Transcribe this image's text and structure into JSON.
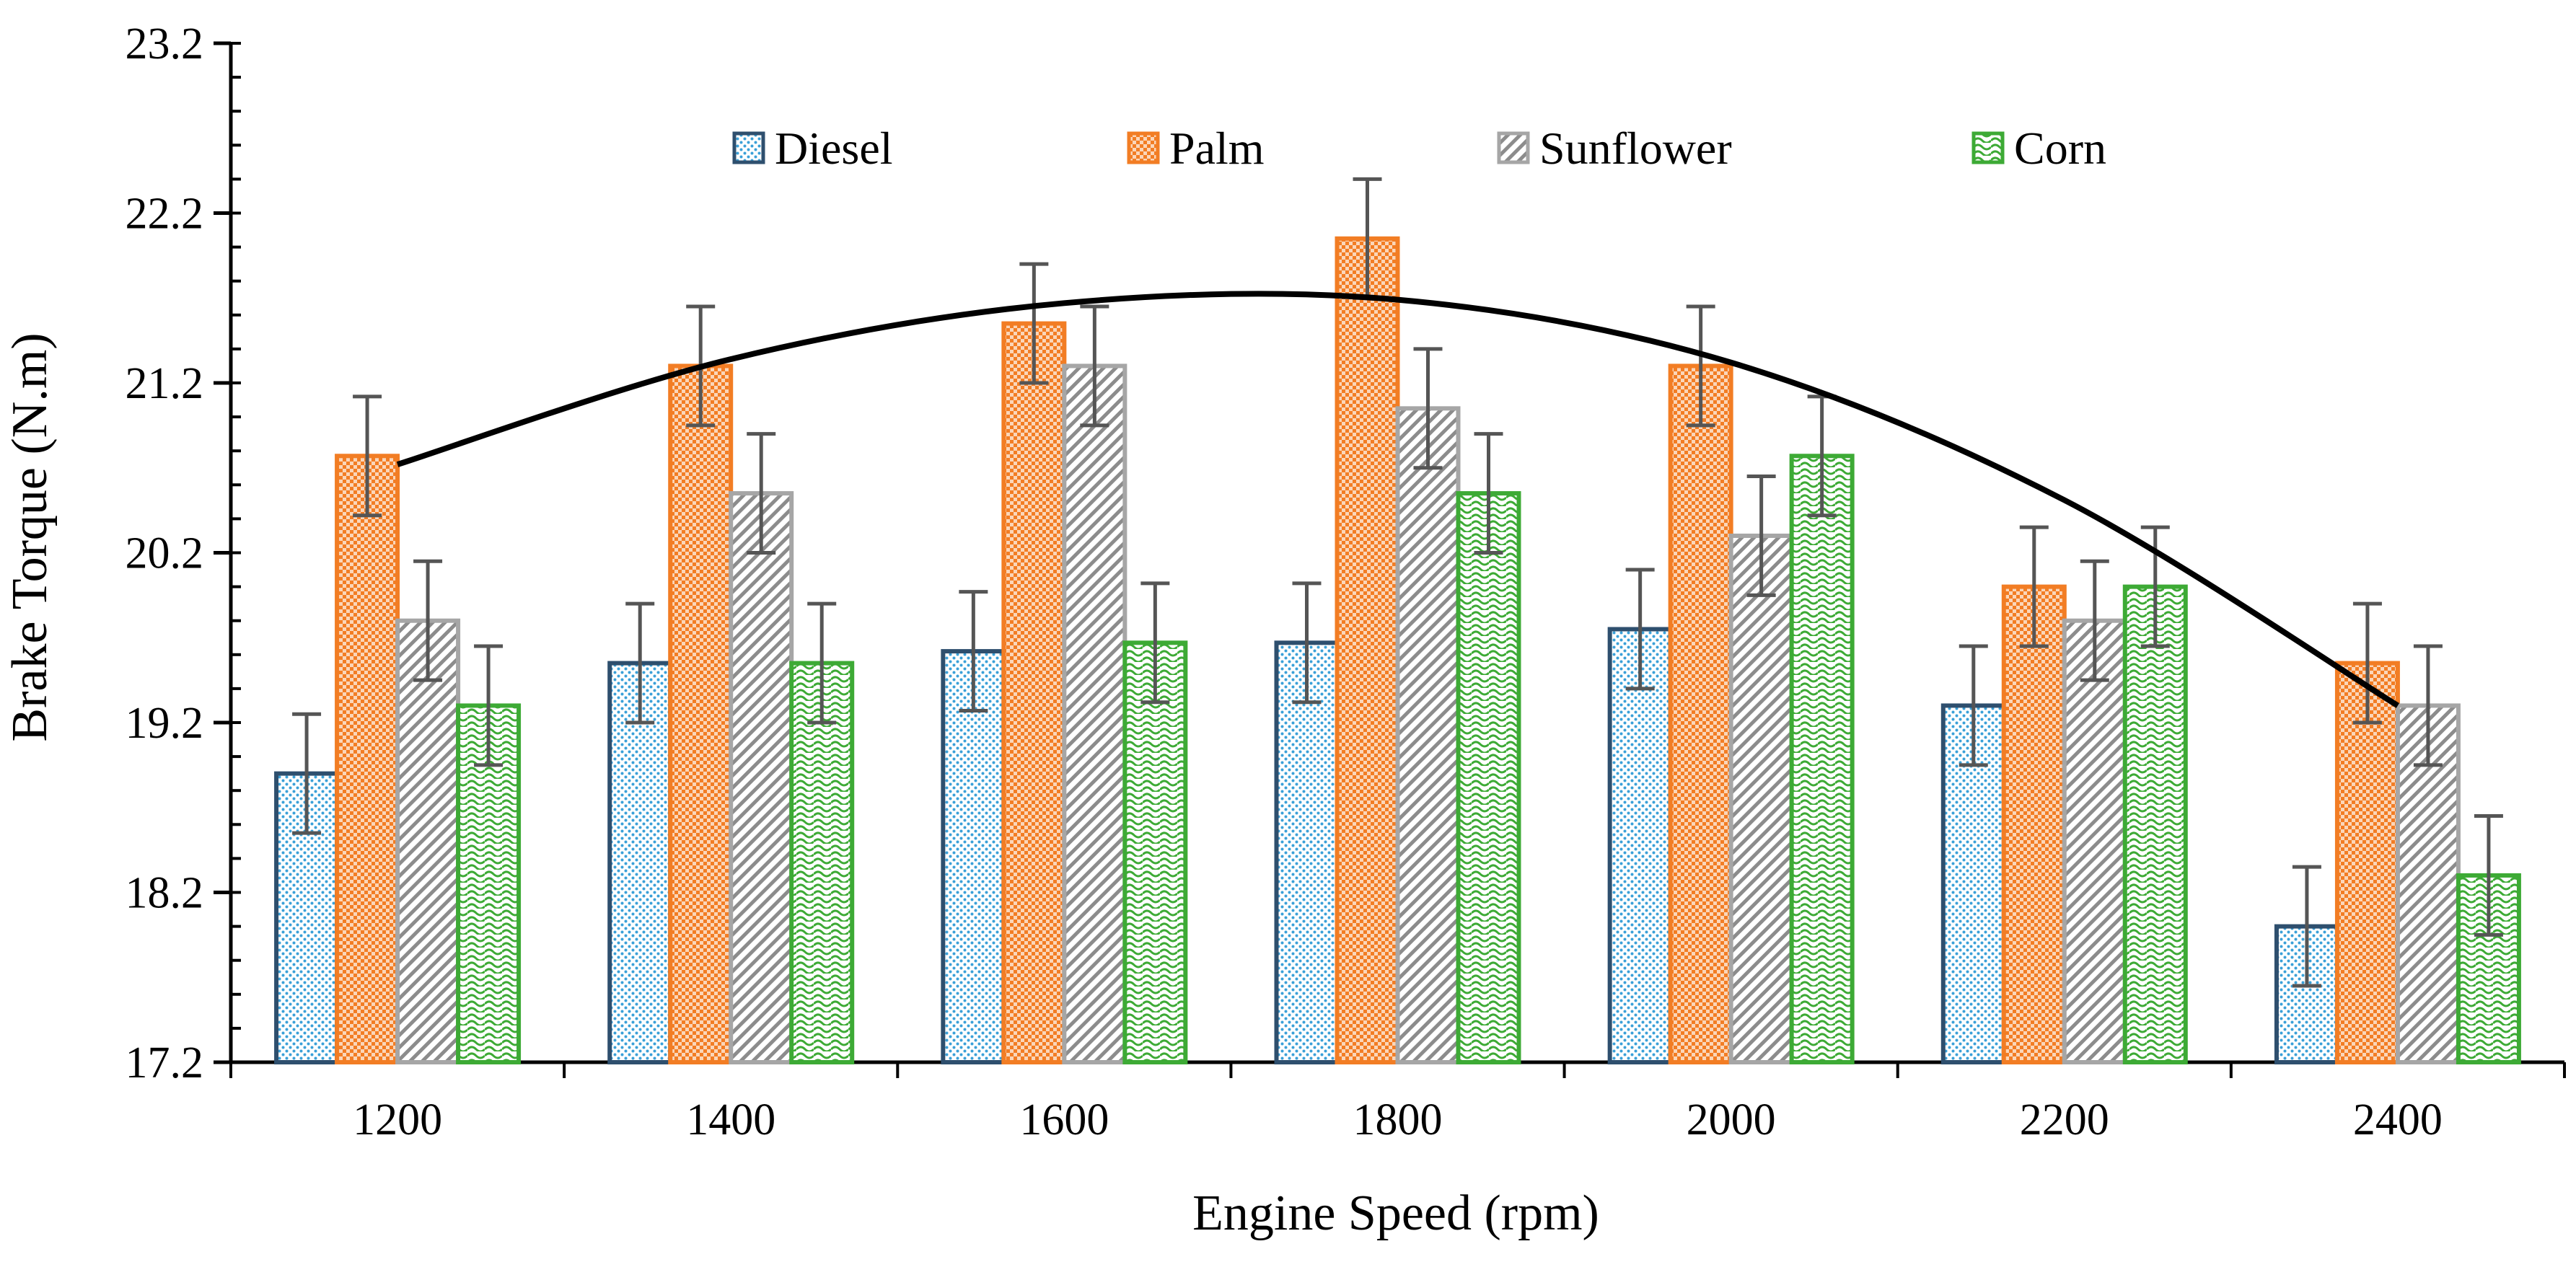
{
  "chart_data": {
    "type": "bar",
    "title": "",
    "xlabel": "Engine Speed (rpm)",
    "ylabel": "Brake Torque (N.m)",
    "ylim": [
      17.2,
      23.2
    ],
    "yticks": [
      "17.2",
      "18.2",
      "19.2",
      "20.2",
      "21.2",
      "22.2",
      "23.2"
    ],
    "categories": [
      "1200",
      "1400",
      "1600",
      "1800",
      "2000",
      "2200",
      "2400"
    ],
    "error_bar": 0.35,
    "legend_position": "top-center",
    "series": [
      {
        "name": "Diesel",
        "color": "#2e4f6e",
        "fill": "#3aa0d8",
        "pattern": "dots",
        "values": [
          18.9,
          19.55,
          19.62,
          19.67,
          19.75,
          19.3,
          18.0
        ]
      },
      {
        "name": "Palm",
        "color": "#f27d24",
        "fill": "#f27d24",
        "pattern": "checker",
        "values": [
          20.77,
          21.3,
          21.55,
          22.05,
          21.3,
          20.0,
          19.55
        ]
      },
      {
        "name": "Sunflower",
        "color": "#a6a6a6",
        "fill": "#8c8c8c",
        "pattern": "diagonal",
        "values": [
          19.8,
          20.55,
          21.3,
          21.05,
          20.3,
          19.8,
          19.3
        ]
      },
      {
        "name": "Corn",
        "color": "#3daa35",
        "fill": "#3daa35",
        "pattern": "wave",
        "values": [
          19.3,
          19.55,
          19.67,
          20.55,
          20.77,
          20.0,
          18.3
        ]
      }
    ],
    "trendline": {
      "type": "polynomial",
      "color": "#000000",
      "x": [
        1200,
        1400,
        1600,
        1800,
        2000,
        2200,
        2400
      ],
      "y": [
        20.72,
        21.34,
        21.67,
        21.69,
        21.32,
        20.51,
        19.3
      ]
    }
  }
}
